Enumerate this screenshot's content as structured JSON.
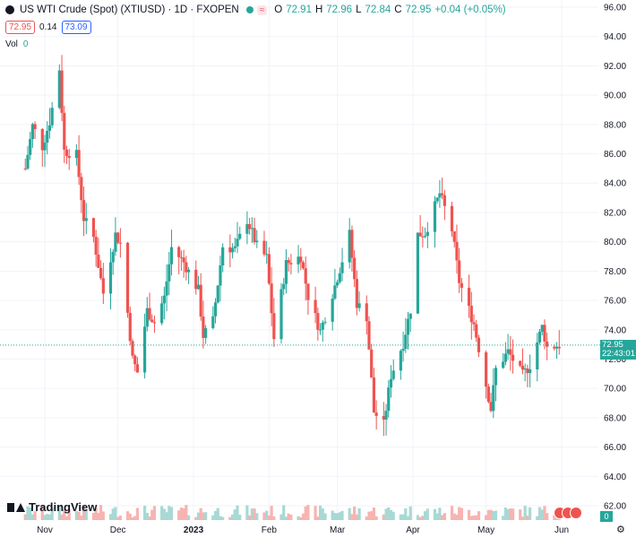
{
  "header": {
    "symbol_title": "US WTI Crude (Spot) (XTIUSD) · 1D · FXOPEN",
    "o_label": "O",
    "o_value": "72.91",
    "h_label": "H",
    "h_value": "72.96",
    "l_label": "L",
    "l_value": "72.84",
    "c_label": "C",
    "c_value": "72.95",
    "change": "+0.04 (+0.05%)",
    "badge": "≈",
    "sell_price": "72.95",
    "spread": "0.14",
    "buy_price": "73.09",
    "vol_label": "Vol",
    "vol_value": "0"
  },
  "price_label": {
    "price": "72.95",
    "countdown": "22:43:01"
  },
  "volume_label": "0",
  "brand": "TradingView",
  "colors": {
    "up": "#26a69a",
    "down": "#ef5350",
    "up_vol": "#a8d9d4",
    "down_vol": "#f7b4b1",
    "grid": "#f0f3fa"
  },
  "chart_data": {
    "type": "candlestick",
    "y_ticks": [
      "96.00",
      "94.00",
      "92.00",
      "90.00",
      "88.00",
      "86.00",
      "84.00",
      "82.00",
      "80.00",
      "78.00",
      "76.00",
      "74.00",
      "72.00",
      "70.00",
      "68.00",
      "66.00",
      "64.00",
      "62.00"
    ],
    "x_ticks": [
      "Nov",
      "Dec",
      "2023",
      "Feb",
      "Mar",
      "Apr",
      "May",
      "Jun"
    ],
    "ylim": [
      62,
      96
    ],
    "last_price": 72.95,
    "series": [
      {
        "t": "2022-10-24",
        "c": 85.0
      },
      {
        "t": "2022-10-27",
        "c": 87.9
      },
      {
        "t": "2022-10-31",
        "c": 86.5
      },
      {
        "t": "2022-11-03",
        "c": 88.2
      },
      {
        "t": "2022-11-07",
        "c": 91.8
      },
      {
        "t": "2022-11-09",
        "c": 86.2
      },
      {
        "t": "2022-11-14",
        "c": 85.9
      },
      {
        "t": "2022-11-17",
        "c": 81.6
      },
      {
        "t": "2022-11-21",
        "c": 80.3
      },
      {
        "t": "2022-11-25",
        "c": 76.5
      },
      {
        "t": "2022-11-30",
        "c": 80.5
      },
      {
        "t": "2022-12-02",
        "c": 79.9
      },
      {
        "t": "2022-12-07",
        "c": 72.0
      },
      {
        "t": "2022-12-09",
        "c": 71.1
      },
      {
        "t": "2022-12-13",
        "c": 75.3
      },
      {
        "t": "2022-12-16",
        "c": 74.5
      },
      {
        "t": "2022-12-20",
        "c": 76.2
      },
      {
        "t": "2022-12-23",
        "c": 79.6
      },
      {
        "t": "2022-12-28",
        "c": 78.6
      },
      {
        "t": "2023-01-03",
        "c": 76.7
      },
      {
        "t": "2023-01-05",
        "c": 73.6
      },
      {
        "t": "2023-01-09",
        "c": 74.6
      },
      {
        "t": "2023-01-13",
        "c": 79.7
      },
      {
        "t": "2023-01-18",
        "c": 79.5
      },
      {
        "t": "2023-01-23",
        "c": 81.5
      },
      {
        "t": "2023-01-27",
        "c": 79.7
      },
      {
        "t": "2023-01-31",
        "c": 78.9
      },
      {
        "t": "2023-02-03",
        "c": 73.4
      },
      {
        "t": "2023-02-08",
        "c": 78.5
      },
      {
        "t": "2023-02-14",
        "c": 79.0
      },
      {
        "t": "2023-02-17",
        "c": 76.3
      },
      {
        "t": "2023-02-22",
        "c": 73.9
      },
      {
        "t": "2023-02-28",
        "c": 77.0
      },
      {
        "t": "2023-03-06",
        "c": 80.5
      },
      {
        "t": "2023-03-09",
        "c": 75.8
      },
      {
        "t": "2023-03-13",
        "c": 74.9
      },
      {
        "t": "2023-03-16",
        "c": 68.4
      },
      {
        "t": "2023-03-20",
        "c": 67.5
      },
      {
        "t": "2023-03-23",
        "c": 70.9
      },
      {
        "t": "2023-03-28",
        "c": 73.1
      },
      {
        "t": "2023-03-31",
        "c": 75.4
      },
      {
        "t": "2023-04-03",
        "c": 80.5
      },
      {
        "t": "2023-04-06",
        "c": 80.6
      },
      {
        "t": "2023-04-12",
        "c": 83.3
      },
      {
        "t": "2023-04-17",
        "c": 80.8
      },
      {
        "t": "2023-04-20",
        "c": 77.3
      },
      {
        "t": "2023-04-26",
        "c": 74.4
      },
      {
        "t": "2023-05-03",
        "c": 68.6
      },
      {
        "t": "2023-05-05",
        "c": 71.3
      },
      {
        "t": "2023-05-10",
        "c": 72.5
      },
      {
        "t": "2023-05-16",
        "c": 70.9
      },
      {
        "t": "2023-05-19",
        "c": 71.6
      },
      {
        "t": "2023-05-24",
        "c": 74.2
      },
      {
        "t": "2023-05-26",
        "c": 72.8
      },
      {
        "t": "2023-05-31",
        "c": 72.95
      }
    ]
  }
}
